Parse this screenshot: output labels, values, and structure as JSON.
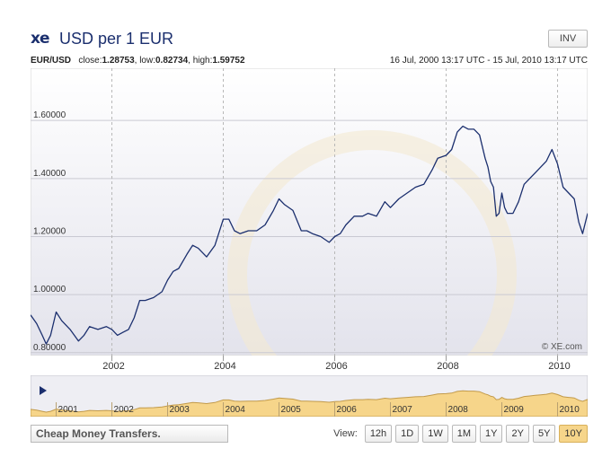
{
  "header": {
    "logo": "xe",
    "title": "USD per 1 EUR",
    "inv_label": "INV"
  },
  "stats": {
    "pair": "EUR/USD",
    "close_label": "close:",
    "close": "1.28753",
    "low_label": ", low:",
    "low": "0.82734",
    "high_label": ", high:",
    "high": "1.59752"
  },
  "date_range": "16 Jul, 2000 13:17 UTC - 15 Jul, 2010 13:17 UTC",
  "watermark": "© XE.com",
  "chart_data": {
    "type": "line",
    "title": "USD per 1 EUR",
    "xlabel": "",
    "ylabel": "",
    "xlim": [
      2000.54,
      2010.54
    ],
    "ylim": [
      0.79,
      1.78
    ],
    "y_ticks": [
      "1.60000",
      "1.40000",
      "1.20000",
      "1.00000",
      "0.80000"
    ],
    "y_tick_values": [
      1.6,
      1.4,
      1.2,
      1.0,
      0.8
    ],
    "x_ticks": [
      "2002",
      "2004",
      "2006",
      "2008",
      "2010"
    ],
    "x_tick_values": [
      2002.0,
      2004.0,
      2006.0,
      2008.0,
      2010.0
    ],
    "grid": true,
    "series": [
      {
        "x": [
          2000.54,
          2000.65,
          2000.75,
          2000.82,
          2000.9,
          2001.0,
          2001.1,
          2001.25,
          2001.4,
          2001.5,
          2001.6,
          2001.75,
          2001.9,
          2002.0,
          2002.1,
          2002.2,
          2002.3,
          2002.4,
          2002.5,
          2002.6,
          2002.75,
          2002.9,
          2003.0,
          2003.1,
          2003.2,
          2003.35,
          2003.45,
          2003.55,
          2003.7,
          2003.85,
          2004.0,
          2004.1,
          2004.2,
          2004.3,
          2004.45,
          2004.6,
          2004.75,
          2004.9,
          2005.0,
          2005.1,
          2005.25,
          2005.4,
          2005.5,
          2005.6,
          2005.75,
          2005.9,
          2006.0,
          2006.1,
          2006.2,
          2006.35,
          2006.5,
          2006.6,
          2006.75,
          2006.9,
          2007.0,
          2007.15,
          2007.3,
          2007.45,
          2007.6,
          2007.75,
          2007.85,
          2008.0,
          2008.1,
          2008.2,
          2008.3,
          2008.4,
          2008.5,
          2008.6,
          2008.7,
          2008.75,
          2008.8,
          2008.85,
          2008.9,
          2008.95,
          2009.0,
          2009.05,
          2009.1,
          2009.2,
          2009.3,
          2009.4,
          2009.5,
          2009.6,
          2009.7,
          2009.8,
          2009.9,
          2010.0,
          2010.1,
          2010.2,
          2010.3,
          2010.38,
          2010.45,
          2010.54
        ],
        "y": [
          0.93,
          0.9,
          0.86,
          0.83,
          0.86,
          0.94,
          0.91,
          0.88,
          0.84,
          0.86,
          0.89,
          0.88,
          0.89,
          0.88,
          0.86,
          0.87,
          0.88,
          0.92,
          0.98,
          0.98,
          0.99,
          1.01,
          1.05,
          1.08,
          1.09,
          1.14,
          1.17,
          1.16,
          1.13,
          1.17,
          1.26,
          1.26,
          1.22,
          1.21,
          1.22,
          1.22,
          1.24,
          1.29,
          1.33,
          1.31,
          1.29,
          1.22,
          1.22,
          1.21,
          1.2,
          1.18,
          1.2,
          1.21,
          1.24,
          1.27,
          1.27,
          1.28,
          1.27,
          1.32,
          1.3,
          1.33,
          1.35,
          1.37,
          1.38,
          1.43,
          1.47,
          1.48,
          1.5,
          1.56,
          1.58,
          1.57,
          1.57,
          1.55,
          1.47,
          1.44,
          1.39,
          1.37,
          1.27,
          1.28,
          1.35,
          1.3,
          1.28,
          1.28,
          1.32,
          1.38,
          1.4,
          1.42,
          1.44,
          1.46,
          1.5,
          1.45,
          1.37,
          1.35,
          1.33,
          1.25,
          1.21,
          1.28
        ]
      }
    ]
  },
  "navigator": {
    "years": [
      "2001",
      "2002",
      "2003",
      "2004",
      "2005",
      "2006",
      "2007",
      "2008",
      "2009",
      "2010"
    ],
    "play_icon": "play-icon"
  },
  "footer": {
    "cheap_label": "Cheap Money Transfers.",
    "view_label": "View:",
    "view_buttons": [
      "12h",
      "1D",
      "1W",
      "1M",
      "1Y",
      "2Y",
      "5Y",
      "10Y"
    ],
    "active_view": "10Y"
  },
  "colors": {
    "line": "#1b2f6e",
    "grid": "#c9c9d2",
    "nav_fill": "#f6d58a",
    "nav_line": "#c29a4a",
    "accent": "#f6d58a"
  }
}
